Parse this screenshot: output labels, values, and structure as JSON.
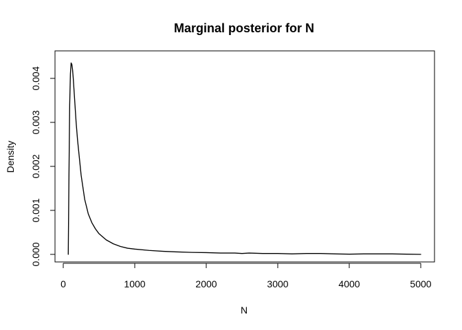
{
  "chart_data": {
    "type": "line",
    "title": "Marginal posterior for N",
    "xlabel": "N",
    "ylabel": "Density",
    "xlim": [
      0,
      5000
    ],
    "ylim": [
      0,
      0.0044
    ],
    "grid": false,
    "legend": "none",
    "x_ticks": [
      0,
      1000,
      2000,
      3000,
      4000,
      5000
    ],
    "y_ticks": [
      0.0,
      0.001,
      0.002,
      0.003,
      0.004
    ],
    "x_tick_labels": [
      "0",
      "1000",
      "2000",
      "3000",
      "4000",
      "5000"
    ],
    "y_tick_labels": [
      "0.000",
      "0.001",
      "0.002",
      "0.003",
      "0.004"
    ],
    "series": [
      {
        "color": "#000000",
        "x": [
          70,
          80,
          90,
          100,
          110,
          120,
          130,
          140,
          150,
          160,
          180,
          200,
          250,
          300,
          350,
          400,
          450,
          500,
          600,
          700,
          800,
          900,
          1000,
          1200,
          1400,
          1600,
          1800,
          2000,
          2200,
          2400,
          2500,
          2600,
          2800,
          3000,
          3200,
          3400,
          3600,
          3800,
          4000,
          4200,
          4400,
          4600,
          4800,
          5000
        ],
        "y": [
          0.0,
          0.0018,
          0.0034,
          0.0041,
          0.00435,
          0.00432,
          0.0042,
          0.004,
          0.00375,
          0.0035,
          0.003,
          0.0026,
          0.0018,
          0.00125,
          0.00092,
          0.00072,
          0.00058,
          0.00047,
          0.00033,
          0.00024,
          0.00018,
          0.00014,
          0.00012,
          9e-05,
          7e-05,
          5.5e-05,
          4.5e-05,
          4e-05,
          3e-05,
          3e-05,
          2e-05,
          3e-05,
          2e-05,
          2e-05,
          1e-05,
          2e-05,
          2e-05,
          1e-05,
          5e-06,
          1e-05,
          1e-05,
          1e-05,
          5e-06,
          0.0
        ]
      }
    ]
  }
}
